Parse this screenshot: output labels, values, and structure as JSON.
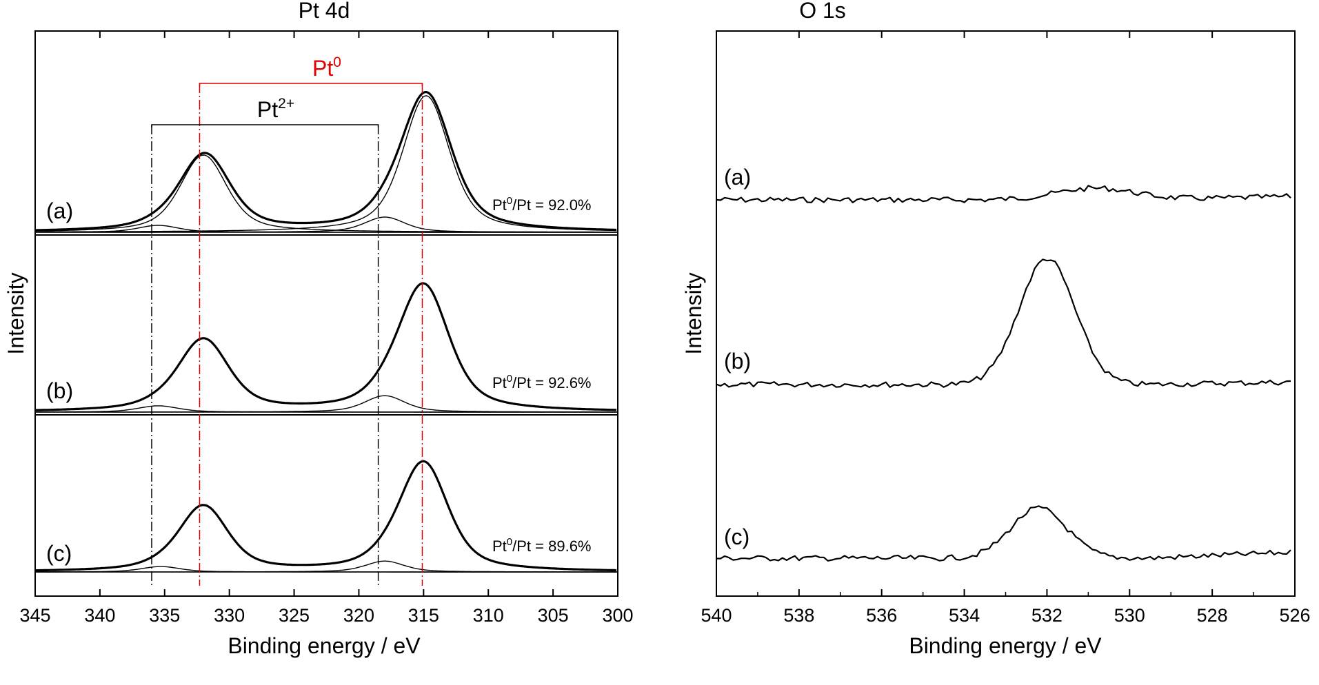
{
  "chart_data": [
    {
      "type": "line",
      "title": "Pt 4d",
      "xlabel": "Binding energy / eV",
      "ylabel": "Intensity",
      "xlim": [
        345,
        300
      ],
      "reversed_x": true,
      "xticks": [
        345,
        340,
        335,
        330,
        325,
        320,
        315,
        310,
        305,
        300
      ],
      "xtick_labels": [
        "345",
        "340",
        "335",
        "330",
        "325",
        "320",
        "315",
        "310",
        "305",
        "300"
      ],
      "stacked_panels": 3,
      "series": [
        {
          "label": "(a)",
          "ratio_text": "Pt",
          "ratio_sup": "0",
          "ratio_tail": "/Pt = 92.0%",
          "components": [
            {
              "role": "envelope",
              "center": 331.9,
              "height": 0.56
            },
            {
              "role": "envelope",
              "center": 314.8,
              "height": 1.0
            },
            {
              "role": "Pt0",
              "center": 332.0,
              "height": 0.56
            },
            {
              "role": "Pt0",
              "center": 314.8,
              "height": 0.99
            },
            {
              "role": "Pt2+",
              "center": 335.5,
              "height": 0.05
            },
            {
              "role": "Pt2+",
              "center": 318.0,
              "height": 0.11
            }
          ]
        },
        {
          "label": "(b)",
          "ratio_text": "Pt",
          "ratio_sup": "0",
          "ratio_tail": "/Pt = 92.6%",
          "components": [
            {
              "role": "envelope",
              "center": 332.0,
              "height": 0.57
            },
            {
              "role": "envelope",
              "center": 315.0,
              "height": 1.0
            },
            {
              "role": "Pt2+",
              "center": 335.5,
              "height": 0.05
            },
            {
              "role": "Pt2+",
              "center": 318.0,
              "height": 0.13
            }
          ]
        },
        {
          "label": "(c)",
          "ratio_text": "Pt",
          "ratio_sup": "0",
          "ratio_tail": "/Pt = 89.6%",
          "components": [
            {
              "role": "envelope",
              "center": 332.0,
              "height": 0.6
            },
            {
              "role": "envelope",
              "center": 315.0,
              "height": 1.0
            },
            {
              "role": "Pt2+",
              "center": 335.3,
              "height": 0.05
            },
            {
              "role": "Pt2+",
              "center": 318.0,
              "height": 0.1
            }
          ]
        }
      ],
      "reference_lines": [
        {
          "label": "Pt",
          "sup": "0",
          "color": "#e00000",
          "positions": [
            332.3,
            315.1
          ]
        },
        {
          "label": "Pt",
          "sup": "2+",
          "color": "#000000",
          "positions": [
            336.0,
            318.5
          ]
        }
      ]
    },
    {
      "type": "line",
      "title": "O 1s",
      "xlabel": "Binding energy / eV",
      "ylabel": "Intensity",
      "xlim": [
        540,
        526
      ],
      "reversed_x": true,
      "xticks": [
        540,
        538,
        536,
        534,
        532,
        530,
        528,
        526
      ],
      "xtick_labels": [
        "540",
        "538",
        "536",
        "534",
        "532",
        "530",
        "528",
        "526"
      ],
      "series": [
        {
          "label": "(a)",
          "peak_center": 530.8,
          "peak_height": 0.25
        },
        {
          "label": "(b)",
          "peak_center": 532.0,
          "peak_height": 1.0
        },
        {
          "label": "(c)",
          "peak_center": 532.2,
          "peak_height": 0.6
        }
      ]
    }
  ],
  "colors": {
    "axes": "#000000",
    "trace": "#000000",
    "pt0_marker": "#e00000",
    "pt2_marker": "#000000"
  }
}
